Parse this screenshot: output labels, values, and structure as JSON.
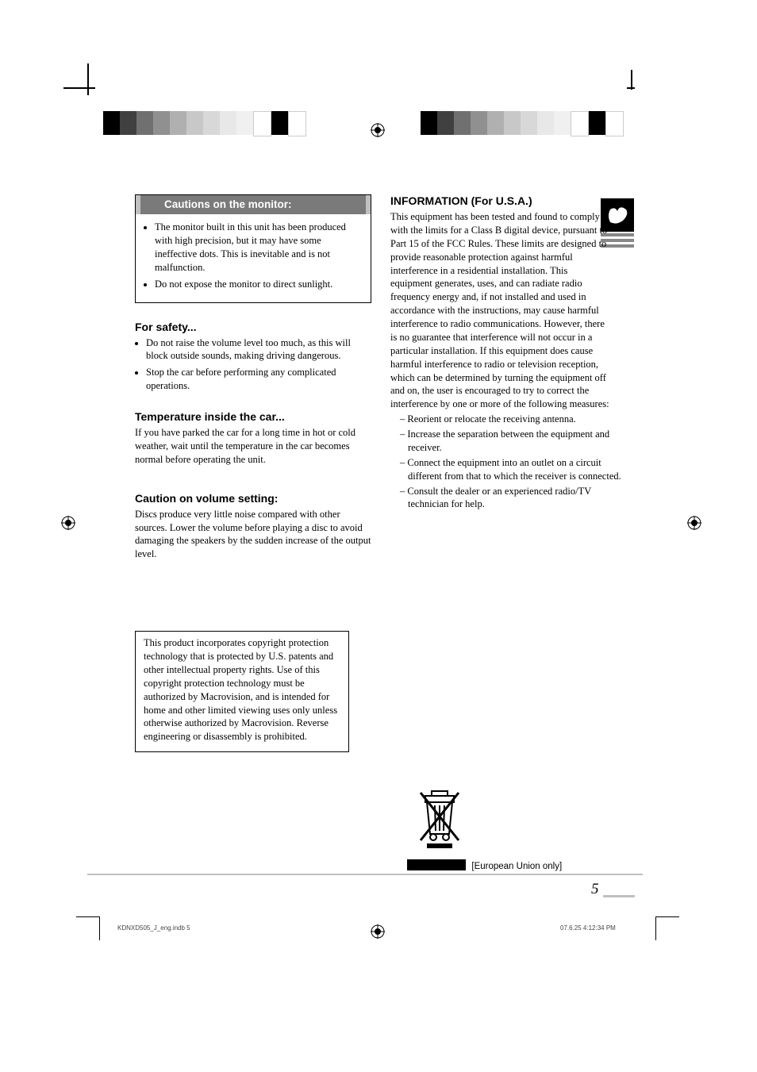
{
  "colorbar_colors": [
    "#000000",
    "#404040",
    "#707070",
    "#909090",
    "#b0b0b0",
    "#c8c8c8",
    "#d8d8d8",
    "#e8e8e8",
    "#f0f0f0",
    "#ffffff",
    "#000000",
    "#ffffff"
  ],
  "cautions_box": {
    "heading": "Cautions on the monitor:",
    "items": [
      "The monitor built in this unit has been produced with high precision, but it may have some ineffective dots. This is inevitable and is not malfunction.",
      "Do not expose the monitor to direct sunlight."
    ]
  },
  "safety": {
    "heading": "For safety...",
    "items": [
      "Do not raise the volume level too much, as this will block outside sounds, making driving dangerous.",
      "Stop the car before performing any complicated operations."
    ]
  },
  "temperature": {
    "heading": "Temperature inside the car...",
    "body": "If you have parked the car for a long time in hot or cold weather, wait until the temperature in the car becomes normal before operating the unit."
  },
  "volume": {
    "heading": "Caution on volume setting:",
    "body": "Discs produce very little noise compared with other sources. Lower the volume before playing a disc to avoid damaging the speakers by the sudden increase of the output level."
  },
  "copyright_box": "This product incorporates copyright protection technology that is protected by U.S. patents and other intellectual property rights. Use of this copyright protection technology must be authorized by Macrovision, and is intended for home and other limited viewing uses only unless otherwise authorized by Macrovision. Reverse engineering or disassembly is prohibited.",
  "information": {
    "heading": "INFORMATION (For U.S.A.)",
    "body": "This equipment has been tested and found to comply with the limits for a Class B digital device, pursuant to Part 15 of the FCC Rules. These limits are designed to provide reasonable protection against harmful interference in a residential installation. This equipment generates, uses, and can radiate radio frequency energy and, if not installed and used in accordance with the instructions, may cause harmful interference to radio communications. However, there is no guarantee that interference will not occur in a particular installation. If this equipment does cause harmful interference to radio or television reception, which can be determined by turning the equipment off and on, the user is encouraged to try to correct the interference by one or more of the following measures:",
    "measures": [
      "Reorient or relocate the receiving antenna.",
      "Increase the separation between the equipment and receiver.",
      "Connect the equipment into an outlet on a circuit different from that to which the receiver is connected.",
      "Consult the dealer or an experienced radio/TV technician for help."
    ]
  },
  "eu_only": "[European Union only]",
  "page_number": "5",
  "footer": {
    "left": "KDNXD505_J_eng.indb   5",
    "right": "07.6.25   4:12:34 PM"
  }
}
